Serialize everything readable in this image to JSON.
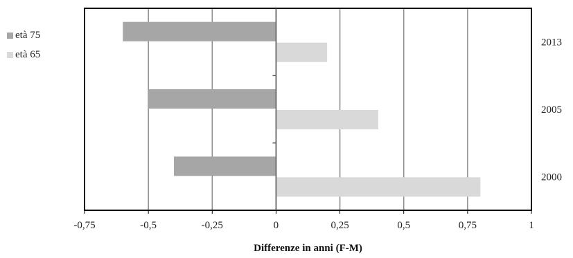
{
  "chart_data": {
    "type": "bar",
    "orientation": "horizontal",
    "categories": [
      "2013",
      "2005",
      "2000"
    ],
    "series": [
      {
        "name": "età 75",
        "values": [
          -0.6,
          -0.5,
          -0.4
        ],
        "color": "#a6a6a6"
      },
      {
        "name": "età 65",
        "values": [
          0.2,
          0.4,
          0.8
        ],
        "color": "#d9d9d9"
      }
    ],
    "x_ticks": [
      "-0,75",
      "-0,5",
      "-0,25",
      "0",
      "0,25",
      "0,5",
      "0,75",
      "1"
    ],
    "x_tick_values": [
      -0.75,
      -0.5,
      -0.25,
      0,
      0.25,
      0.5,
      0.75,
      1
    ],
    "xlim": [
      -0.75,
      1
    ],
    "xlabel": "Differenze in anni (F-M)",
    "ylabel": "",
    "grid": "vertical",
    "legend_position": "left",
    "category_axis_position": "right"
  }
}
